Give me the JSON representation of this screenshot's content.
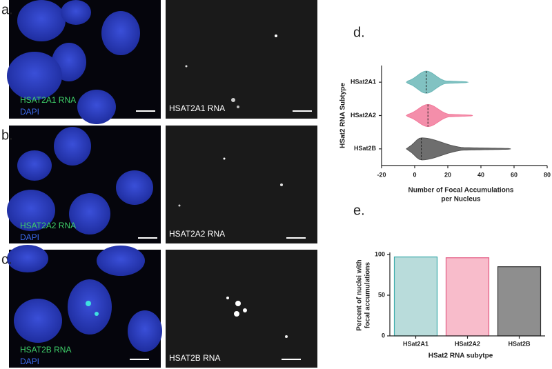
{
  "panels": [
    {
      "letter": "a.",
      "label": "HSAT2A1 RNA",
      "stain": "DAPI",
      "right_label": "HSAT2A1 RNA"
    },
    {
      "letter": "b.",
      "label": "HSAT2A2 RNA",
      "stain": "DAPI",
      "right_label": "HSAT2A2 RNA"
    },
    {
      "letter": "c.",
      "label": "HSAT2B RNA",
      "stain": "DAPI",
      "right_label": "HSAT2B RNA"
    }
  ],
  "chart_data": [
    {
      "type": "violin",
      "letter": "d.",
      "ylabel": "HSat2 RNA Subtype",
      "xlabel": [
        "Number of Focal Accumulations",
        "per Nucleus"
      ],
      "categories": [
        "HSat2A1",
        "HSat2A2",
        "HSat2B"
      ],
      "min": [
        -5,
        -5,
        -5
      ],
      "median": [
        7,
        8,
        4
      ],
      "max": [
        32,
        35,
        58
      ],
      "colors": [
        "#6bb7b7",
        "#f27a9b",
        "#555555"
      ],
      "xlim": [
        -20,
        80
      ],
      "xticks": [
        -20,
        0,
        20,
        40,
        60,
        80
      ]
    },
    {
      "type": "bar",
      "letter": "e.",
      "ylabel": [
        "Percent of nuclei with",
        "focal accumulations"
      ],
      "xlabel": "HSat2 RNA subytpe",
      "categories": [
        "HSat2A1",
        "HSat2A2",
        "HSat2B"
      ],
      "values": [
        97,
        96,
        85
      ],
      "colors": [
        "#b9dcdb",
        "#f8bccb",
        "#8e8e8e"
      ],
      "edge_colors": [
        "#36a9a9",
        "#e35a82",
        "#333333"
      ],
      "ylim": [
        0,
        100
      ],
      "yticks": [
        0,
        50,
        100
      ]
    }
  ]
}
